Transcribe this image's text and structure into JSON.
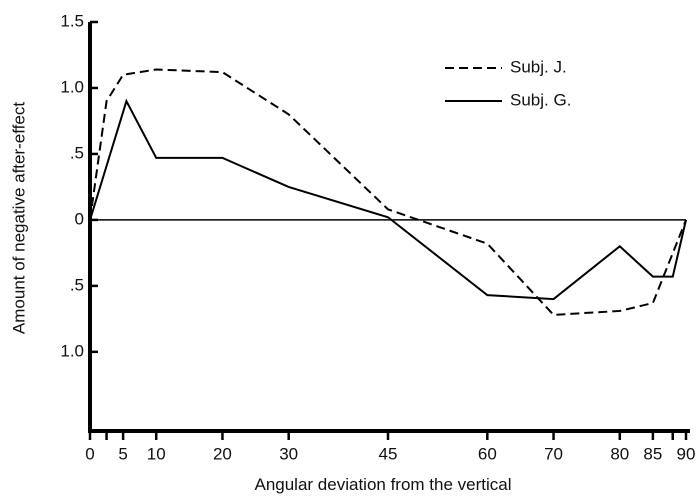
{
  "chart_data": {
    "type": "line",
    "xlabel": "Angular deviation from the vertical",
    "ylabel": "Amount of negative after-effect",
    "xlim": [
      0,
      90
    ],
    "ylim": [
      -1.6,
      1.5
    ],
    "xticks": [
      0,
      {
        "value": 2.5,
        "label": null
      },
      5,
      10,
      20,
      30,
      45,
      60,
      70,
      80,
      85,
      {
        "value": 88,
        "label": null
      },
      90
    ],
    "yticks": [
      {
        "value": 1.5,
        "label": "1.5"
      },
      {
        "value": 1,
        "label": "1.0"
      },
      {
        "value": 0.5,
        "label": ".5"
      },
      0,
      {
        "value": -0.5,
        "label": ".5"
      },
      {
        "value": -1,
        "label": "1.0"
      }
    ],
    "zero_line": true,
    "legend": "upper right",
    "series": [
      {
        "name": "Subj. J.",
        "color": "#000000",
        "dash": true,
        "x": [
          0,
          2.5,
          5,
          10,
          20,
          30,
          45,
          60,
          70,
          80,
          85,
          90
        ],
        "values": [
          0,
          0.9,
          1.1,
          1.14,
          1.12,
          0.8,
          0.08,
          -0.18,
          -0.72,
          -0.69,
          -0.63,
          0
        ]
      },
      {
        "name": "Subj. G.",
        "color": "#000000",
        "dash": false,
        "x": [
          0,
          5.5,
          10,
          20,
          30,
          45,
          60,
          70,
          80,
          85,
          88,
          90
        ],
        "values": [
          0,
          0.9,
          0.47,
          0.47,
          0.25,
          0.02,
          -0.57,
          -0.6,
          -0.2,
          -0.43,
          -0.43,
          0
        ]
      }
    ]
  }
}
